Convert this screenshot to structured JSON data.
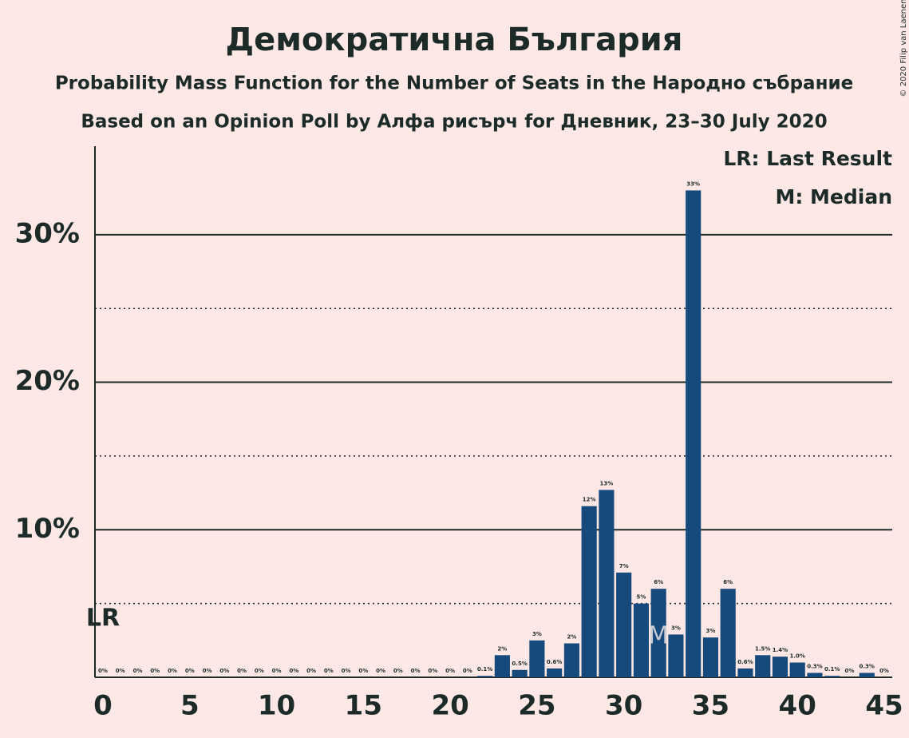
{
  "chart_data": {
    "type": "bar",
    "title": "Демократична България",
    "subtitle": "Probability Mass Function for the Number of Seats in the Народно събрание",
    "subtitle2": "Based on an Opinion Poll by Алфа рисърч for Дневник, 23–30 July 2020",
    "credit": "© 2020 Filip van Laenen",
    "x": [
      0,
      1,
      2,
      3,
      4,
      5,
      6,
      7,
      8,
      9,
      10,
      11,
      12,
      13,
      14,
      15,
      16,
      17,
      18,
      19,
      20,
      21,
      22,
      23,
      24,
      25,
      26,
      27,
      28,
      29,
      30,
      31,
      32,
      33,
      34,
      35,
      36,
      37,
      38,
      39,
      40,
      41,
      42,
      43,
      44,
      45
    ],
    "values": [
      0,
      0,
      0,
      0,
      0,
      0,
      0,
      0,
      0,
      0,
      0,
      0,
      0,
      0,
      0,
      0,
      0,
      0,
      0,
      0,
      0,
      0,
      0.1,
      1.5,
      0.5,
      2.5,
      0.6,
      2.3,
      11.6,
      12.7,
      7.1,
      5.0,
      6.0,
      2.9,
      33.0,
      2.7,
      6.0,
      0.6,
      1.5,
      1.4,
      1.0,
      0.3,
      0.1,
      0,
      0.3,
      0
    ],
    "value_labels": [
      "0%",
      "0%",
      "0%",
      "0%",
      "0%",
      "0%",
      "0%",
      "0%",
      "0%",
      "0%",
      "0%",
      "0%",
      "0%",
      "0%",
      "0%",
      "0%",
      "0%",
      "0%",
      "0%",
      "0%",
      "0%",
      "0%",
      "0.1%",
      "2%",
      "0.5%",
      "3%",
      "0.6%",
      "2%",
      "12%",
      "13%",
      "7%",
      "5%",
      "6%",
      "3%",
      "33%",
      "3%",
      "6%",
      "0.6%",
      "1.5%",
      "1.4%",
      "1.0%",
      "0.3%",
      "0.1%",
      "0%",
      "0.3%",
      "0%"
    ],
    "color": "#164a7c",
    "xlim": [
      0,
      45
    ],
    "xticks": [
      0,
      5,
      10,
      15,
      20,
      25,
      30,
      35,
      40,
      45
    ],
    "ylim": [
      0,
      36
    ],
    "yticks": [
      {
        "value": 10,
        "label": "10%"
      },
      {
        "value": 20,
        "label": "20%"
      },
      {
        "value": 30,
        "label": "30%"
      }
    ],
    "minor_gridlines": [
      5,
      15,
      25
    ],
    "grid": true,
    "annotations": [
      {
        "label": "LR",
        "x": 0
      },
      {
        "label": "M",
        "x": 32
      }
    ],
    "legend": [
      "LR: Last Result",
      "M: Median"
    ]
  }
}
